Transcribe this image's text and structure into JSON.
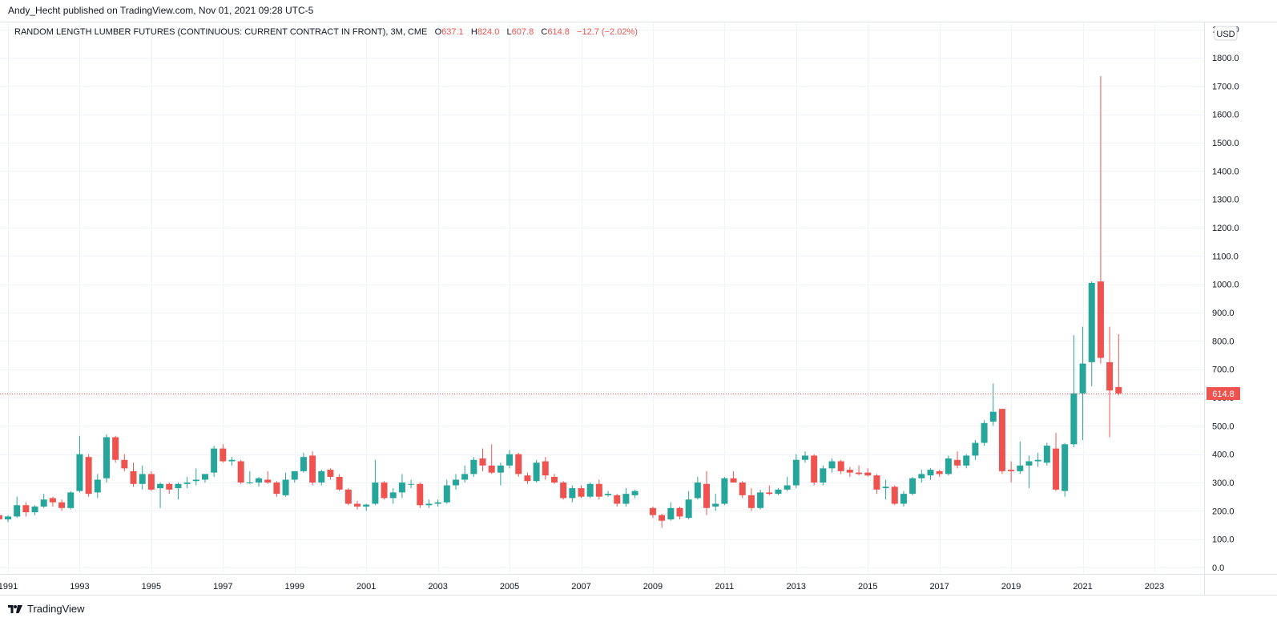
{
  "header": {
    "published_line": "Andy_Hecht published on TradingView.com, Nov 01, 2021 09:28 UTC-5"
  },
  "legend": {
    "symbol": "RANDOM LENGTH LUMBER FUTURES (CONTINUOUS: CURRENT CONTRACT IN FRONT), 3M, CME",
    "o_label": "O",
    "o_value": "637.1",
    "h_label": "H",
    "h_value": "824.0",
    "l_label": "L",
    "l_value": "607.8",
    "c_label": "C",
    "c_value": "614.8",
    "change": "−12.7 (−2.02%)"
  },
  "currency_button": "USD",
  "last_price_label": "614.8",
  "footer": {
    "brand": "TradingView"
  },
  "colors": {
    "up": "#26a69a",
    "down": "#ef5350",
    "grid": "#f0f3fa",
    "axis_text": "#131722",
    "last_price_line": "#ef5350"
  },
  "chart_data": {
    "type": "candlestick",
    "interval": "3M",
    "y_axis": {
      "ticks": [
        0,
        100,
        200,
        300,
        400,
        500,
        600,
        700,
        800,
        900,
        1000,
        1100,
        1200,
        1300,
        1400,
        1500,
        1600,
        1700,
        1800,
        1900
      ],
      "tick_labels": [
        "0.0",
        "100.0",
        "200.0",
        "300.0",
        "400.0",
        "500.0",
        "600.0",
        "700.0",
        "800.0",
        "900.0",
        "1000.0",
        "1100.0",
        "1200.0",
        "1300.0",
        "1400.0",
        "1500.0",
        "1600.0",
        "1700.0",
        "1800.0",
        "1900.0"
      ],
      "ylim": [
        -20,
        1900
      ]
    },
    "x_axis": {
      "tick_labels": [
        "1991",
        "1993",
        "1995",
        "1997",
        "1999",
        "2001",
        "2003",
        "2005",
        "2007",
        "2009",
        "2011",
        "2013",
        "2015",
        "2017",
        "2019",
        "2021",
        "2023"
      ],
      "tick_years": [
        1991,
        1993,
        1995,
        1997,
        1999,
        2001,
        2003,
        2005,
        2007,
        2009,
        2011,
        2013,
        2015,
        2017,
        2019,
        2021,
        2023
      ],
      "xlim": [
        1990.95,
        2024.4
      ]
    },
    "last_price": 614.8,
    "candles": [
      {
        "t": 1990.75,
        "o": 185,
        "h": 190,
        "l": 165,
        "c": 170
      },
      {
        "t": 1991.0,
        "o": 170,
        "h": 185,
        "l": 160,
        "c": 180
      },
      {
        "t": 1991.25,
        "o": 180,
        "h": 250,
        "l": 175,
        "c": 220
      },
      {
        "t": 1991.5,
        "o": 220,
        "h": 230,
        "l": 180,
        "c": 195
      },
      {
        "t": 1991.75,
        "o": 195,
        "h": 220,
        "l": 185,
        "c": 215
      },
      {
        "t": 1992.0,
        "o": 215,
        "h": 260,
        "l": 210,
        "c": 240
      },
      {
        "t": 1992.25,
        "o": 245,
        "h": 250,
        "l": 215,
        "c": 230
      },
      {
        "t": 1992.5,
        "o": 230,
        "h": 240,
        "l": 200,
        "c": 210
      },
      {
        "t": 1992.75,
        "o": 210,
        "h": 270,
        "l": 205,
        "c": 265
      },
      {
        "t": 1993.0,
        "o": 270,
        "h": 465,
        "l": 265,
        "c": 400
      },
      {
        "t": 1993.25,
        "o": 390,
        "h": 400,
        "l": 250,
        "c": 260
      },
      {
        "t": 1993.5,
        "o": 265,
        "h": 330,
        "l": 245,
        "c": 310
      },
      {
        "t": 1993.75,
        "o": 315,
        "h": 470,
        "l": 300,
        "c": 460
      },
      {
        "t": 1994.0,
        "o": 460,
        "h": 465,
        "l": 370,
        "c": 380
      },
      {
        "t": 1994.25,
        "o": 380,
        "h": 400,
        "l": 340,
        "c": 350
      },
      {
        "t": 1994.5,
        "o": 340,
        "h": 370,
        "l": 285,
        "c": 295
      },
      {
        "t": 1994.75,
        "o": 295,
        "h": 360,
        "l": 275,
        "c": 330
      },
      {
        "t": 1995.0,
        "o": 330,
        "h": 340,
        "l": 270,
        "c": 275
      },
      {
        "t": 1995.25,
        "o": 280,
        "h": 300,
        "l": 210,
        "c": 295
      },
      {
        "t": 1995.5,
        "o": 295,
        "h": 300,
        "l": 260,
        "c": 275
      },
      {
        "t": 1995.75,
        "o": 280,
        "h": 300,
        "l": 240,
        "c": 295
      },
      {
        "t": 1996.0,
        "o": 295,
        "h": 320,
        "l": 280,
        "c": 300
      },
      {
        "t": 1996.25,
        "o": 305,
        "h": 350,
        "l": 290,
        "c": 310
      },
      {
        "t": 1996.5,
        "o": 310,
        "h": 330,
        "l": 300,
        "c": 330
      },
      {
        "t": 1996.75,
        "o": 335,
        "h": 430,
        "l": 320,
        "c": 420
      },
      {
        "t": 1997.0,
        "o": 420,
        "h": 435,
        "l": 370,
        "c": 375
      },
      {
        "t": 1997.25,
        "o": 375,
        "h": 390,
        "l": 360,
        "c": 380
      },
      {
        "t": 1997.5,
        "o": 375,
        "h": 380,
        "l": 295,
        "c": 300
      },
      {
        "t": 1997.75,
        "o": 300,
        "h": 340,
        "l": 295,
        "c": 300
      },
      {
        "t": 1998.0,
        "o": 300,
        "h": 320,
        "l": 285,
        "c": 315
      },
      {
        "t": 1998.25,
        "o": 310,
        "h": 340,
        "l": 295,
        "c": 300
      },
      {
        "t": 1998.5,
        "o": 300,
        "h": 305,
        "l": 250,
        "c": 260
      },
      {
        "t": 1998.75,
        "o": 255,
        "h": 335,
        "l": 250,
        "c": 310
      },
      {
        "t": 1999.0,
        "o": 310,
        "h": 340,
        "l": 300,
        "c": 340
      },
      {
        "t": 1999.25,
        "o": 340,
        "h": 405,
        "l": 335,
        "c": 390
      },
      {
        "t": 1999.5,
        "o": 395,
        "h": 410,
        "l": 290,
        "c": 300
      },
      {
        "t": 1999.75,
        "o": 300,
        "h": 345,
        "l": 290,
        "c": 340
      },
      {
        "t": 2000.0,
        "o": 345,
        "h": 350,
        "l": 310,
        "c": 320
      },
      {
        "t": 2000.25,
        "o": 320,
        "h": 330,
        "l": 270,
        "c": 275
      },
      {
        "t": 2000.5,
        "o": 275,
        "h": 280,
        "l": 220,
        "c": 225
      },
      {
        "t": 2000.75,
        "o": 225,
        "h": 235,
        "l": 205,
        "c": 215
      },
      {
        "t": 2001.0,
        "o": 215,
        "h": 225,
        "l": 200,
        "c": 222
      },
      {
        "t": 2001.25,
        "o": 225,
        "h": 380,
        "l": 220,
        "c": 300
      },
      {
        "t": 2001.5,
        "o": 300,
        "h": 305,
        "l": 240,
        "c": 245
      },
      {
        "t": 2001.75,
        "o": 245,
        "h": 280,
        "l": 225,
        "c": 265
      },
      {
        "t": 2002.0,
        "o": 265,
        "h": 330,
        "l": 245,
        "c": 300
      },
      {
        "t": 2002.25,
        "o": 295,
        "h": 310,
        "l": 280,
        "c": 295
      },
      {
        "t": 2002.5,
        "o": 295,
        "h": 300,
        "l": 210,
        "c": 220
      },
      {
        "t": 2002.75,
        "o": 220,
        "h": 240,
        "l": 210,
        "c": 225
      },
      {
        "t": 2003.0,
        "o": 225,
        "h": 240,
        "l": 215,
        "c": 230
      },
      {
        "t": 2003.25,
        "o": 230,
        "h": 310,
        "l": 225,
        "c": 290
      },
      {
        "t": 2003.5,
        "o": 290,
        "h": 330,
        "l": 275,
        "c": 310
      },
      {
        "t": 2003.75,
        "o": 310,
        "h": 360,
        "l": 300,
        "c": 330
      },
      {
        "t": 2004.0,
        "o": 330,
        "h": 390,
        "l": 320,
        "c": 380
      },
      {
        "t": 2004.25,
        "o": 385,
        "h": 420,
        "l": 340,
        "c": 360
      },
      {
        "t": 2004.5,
        "o": 360,
        "h": 435,
        "l": 330,
        "c": 335
      },
      {
        "t": 2004.75,
        "o": 335,
        "h": 370,
        "l": 290,
        "c": 360
      },
      {
        "t": 2005.0,
        "o": 360,
        "h": 415,
        "l": 350,
        "c": 400
      },
      {
        "t": 2005.25,
        "o": 400,
        "h": 405,
        "l": 320,
        "c": 330
      },
      {
        "t": 2005.5,
        "o": 325,
        "h": 335,
        "l": 295,
        "c": 305
      },
      {
        "t": 2005.75,
        "o": 305,
        "h": 380,
        "l": 300,
        "c": 370
      },
      {
        "t": 2006.0,
        "o": 375,
        "h": 390,
        "l": 310,
        "c": 325
      },
      {
        "t": 2006.25,
        "o": 320,
        "h": 330,
        "l": 295,
        "c": 300
      },
      {
        "t": 2006.5,
        "o": 300,
        "h": 305,
        "l": 240,
        "c": 245
      },
      {
        "t": 2006.75,
        "o": 245,
        "h": 290,
        "l": 230,
        "c": 280
      },
      {
        "t": 2007.0,
        "o": 280,
        "h": 290,
        "l": 245,
        "c": 250
      },
      {
        "t": 2007.25,
        "o": 250,
        "h": 300,
        "l": 245,
        "c": 295
      },
      {
        "t": 2007.5,
        "o": 295,
        "h": 310,
        "l": 240,
        "c": 250
      },
      {
        "t": 2007.75,
        "o": 255,
        "h": 270,
        "l": 250,
        "c": 260
      },
      {
        "t": 2008.0,
        "o": 255,
        "h": 260,
        "l": 215,
        "c": 225
      },
      {
        "t": 2008.25,
        "o": 225,
        "h": 280,
        "l": 215,
        "c": 260
      },
      {
        "t": 2008.5,
        "o": 255,
        "h": 275,
        "l": 245,
        "c": 270
      },
      {
        "t": 2009.0,
        "o": 210,
        "h": 215,
        "l": 175,
        "c": 185
      },
      {
        "t": 2009.25,
        "o": 185,
        "h": 190,
        "l": 140,
        "c": 165
      },
      {
        "t": 2009.5,
        "o": 170,
        "h": 230,
        "l": 165,
        "c": 210
      },
      {
        "t": 2009.75,
        "o": 210,
        "h": 215,
        "l": 170,
        "c": 180
      },
      {
        "t": 2010.0,
        "o": 175,
        "h": 270,
        "l": 170,
        "c": 240
      },
      {
        "t": 2010.25,
        "o": 245,
        "h": 320,
        "l": 240,
        "c": 300
      },
      {
        "t": 2010.5,
        "o": 295,
        "h": 340,
        "l": 185,
        "c": 210
      },
      {
        "t": 2010.75,
        "o": 215,
        "h": 260,
        "l": 200,
        "c": 225
      },
      {
        "t": 2011.0,
        "o": 225,
        "h": 320,
        "l": 220,
        "c": 315
      },
      {
        "t": 2011.25,
        "o": 315,
        "h": 340,
        "l": 300,
        "c": 300
      },
      {
        "t": 2011.5,
        "o": 300,
        "h": 305,
        "l": 245,
        "c": 255
      },
      {
        "t": 2011.75,
        "o": 255,
        "h": 280,
        "l": 200,
        "c": 210
      },
      {
        "t": 2012.0,
        "o": 210,
        "h": 275,
        "l": 205,
        "c": 265
      },
      {
        "t": 2012.25,
        "o": 265,
        "h": 290,
        "l": 255,
        "c": 260
      },
      {
        "t": 2012.5,
        "o": 260,
        "h": 280,
        "l": 255,
        "c": 275
      },
      {
        "t": 2012.75,
        "o": 275,
        "h": 320,
        "l": 270,
        "c": 290
      },
      {
        "t": 2013.0,
        "o": 290,
        "h": 400,
        "l": 280,
        "c": 380
      },
      {
        "t": 2013.25,
        "o": 380,
        "h": 410,
        "l": 370,
        "c": 395
      },
      {
        "t": 2013.5,
        "o": 395,
        "h": 400,
        "l": 290,
        "c": 300
      },
      {
        "t": 2013.75,
        "o": 300,
        "h": 360,
        "l": 290,
        "c": 350
      },
      {
        "t": 2014.0,
        "o": 350,
        "h": 385,
        "l": 335,
        "c": 375
      },
      {
        "t": 2014.25,
        "o": 375,
        "h": 380,
        "l": 330,
        "c": 340
      },
      {
        "t": 2014.5,
        "o": 345,
        "h": 355,
        "l": 320,
        "c": 335
      },
      {
        "t": 2014.75,
        "o": 335,
        "h": 360,
        "l": 325,
        "c": 330
      },
      {
        "t": 2015.0,
        "o": 335,
        "h": 350,
        "l": 320,
        "c": 325
      },
      {
        "t": 2015.25,
        "o": 325,
        "h": 330,
        "l": 260,
        "c": 275
      },
      {
        "t": 2015.5,
        "o": 280,
        "h": 310,
        "l": 240,
        "c": 285
      },
      {
        "t": 2015.75,
        "o": 285,
        "h": 290,
        "l": 220,
        "c": 225
      },
      {
        "t": 2016.0,
        "o": 225,
        "h": 270,
        "l": 215,
        "c": 260
      },
      {
        "t": 2016.25,
        "o": 260,
        "h": 320,
        "l": 255,
        "c": 315
      },
      {
        "t": 2016.5,
        "o": 315,
        "h": 345,
        "l": 300,
        "c": 330
      },
      {
        "t": 2016.75,
        "o": 325,
        "h": 350,
        "l": 310,
        "c": 345
      },
      {
        "t": 2017.0,
        "o": 340,
        "h": 345,
        "l": 320,
        "c": 330
      },
      {
        "t": 2017.25,
        "o": 330,
        "h": 395,
        "l": 325,
        "c": 385
      },
      {
        "t": 2017.5,
        "o": 380,
        "h": 410,
        "l": 350,
        "c": 360
      },
      {
        "t": 2017.75,
        "o": 360,
        "h": 400,
        "l": 350,
        "c": 395
      },
      {
        "t": 2018.0,
        "o": 395,
        "h": 450,
        "l": 380,
        "c": 440
      },
      {
        "t": 2018.25,
        "o": 440,
        "h": 520,
        "l": 430,
        "c": 510
      },
      {
        "t": 2018.5,
        "o": 515,
        "h": 650,
        "l": 500,
        "c": 550
      },
      {
        "t": 2018.75,
        "o": 560,
        "h": 560,
        "l": 330,
        "c": 340
      },
      {
        "t": 2019.0,
        "o": 345,
        "h": 375,
        "l": 300,
        "c": 340
      },
      {
        "t": 2019.25,
        "o": 340,
        "h": 445,
        "l": 330,
        "c": 360
      },
      {
        "t": 2019.5,
        "o": 360,
        "h": 395,
        "l": 280,
        "c": 375
      },
      {
        "t": 2019.75,
        "o": 375,
        "h": 405,
        "l": 355,
        "c": 380
      },
      {
        "t": 2020.0,
        "o": 370,
        "h": 440,
        "l": 360,
        "c": 430
      },
      {
        "t": 2020.25,
        "o": 420,
        "h": 475,
        "l": 270,
        "c": 275
      },
      {
        "t": 2020.5,
        "o": 270,
        "h": 440,
        "l": 250,
        "c": 435
      },
      {
        "t": 2020.75,
        "o": 435,
        "h": 820,
        "l": 425,
        "c": 615
      },
      {
        "t": 2021.0,
        "o": 615,
        "h": 850,
        "l": 450,
        "c": 720
      },
      {
        "t": 2021.25,
        "o": 725,
        "h": 1010,
        "l": 640,
        "c": 1005
      },
      {
        "t": 2021.5,
        "o": 1010,
        "h": 1735,
        "l": 720,
        "c": 740
      },
      {
        "t": 2021.75,
        "o": 725,
        "h": 850,
        "l": 460,
        "c": 625
      },
      {
        "t": 2022.0,
        "o": 637.1,
        "h": 824.0,
        "l": 607.8,
        "c": 614.8
      }
    ]
  }
}
